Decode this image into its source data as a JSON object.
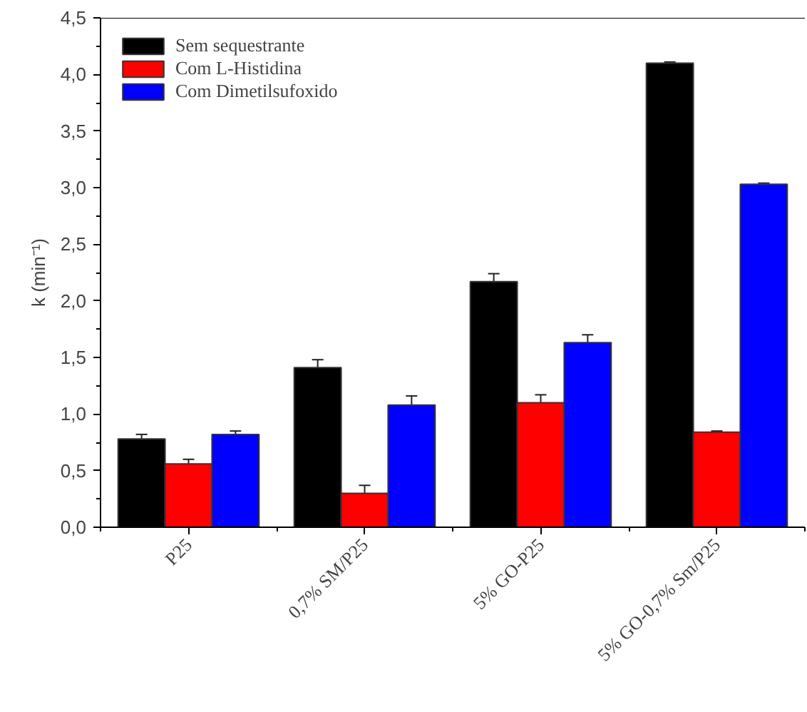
{
  "chart_data": {
    "type": "bar",
    "ylabel": "k (min⁻¹)",
    "categories": [
      "P25",
      "0,7% SM/P25",
      "5% GO-P25",
      "5% GO-0,7% Sm/P25"
    ],
    "series": [
      {
        "name": "Sem sequestrante",
        "color": "#000000",
        "values": [
          0.78,
          1.41,
          2.17,
          4.1
        ],
        "errors": [
          0.04,
          0.07,
          0.07,
          0.01
        ]
      },
      {
        "name": "Com L-Histidina",
        "color": "#ff0000",
        "values": [
          0.56,
          0.3,
          1.1,
          0.84
        ],
        "errors": [
          0.04,
          0.07,
          0.07,
          0.01
        ]
      },
      {
        "name": "Com Dimetilsufoxido",
        "color": "#0000ff",
        "values": [
          0.82,
          1.08,
          1.63,
          3.03
        ],
        "errors": [
          0.03,
          0.08,
          0.07,
          0.01
        ]
      }
    ],
    "ylim": [
      0,
      4.5
    ],
    "yticks": [
      {
        "value": 0,
        "label": "0,0"
      },
      {
        "value": 0.5,
        "label": "0,5"
      },
      {
        "value": 1,
        "label": "1,0"
      },
      {
        "value": 1.5,
        "label": "1,5"
      },
      {
        "value": 2,
        "label": "2,0"
      },
      {
        "value": 2.5,
        "label": "2,5"
      },
      {
        "value": 3,
        "label": "3,0"
      },
      {
        "value": 3.5,
        "label": "3,5"
      },
      {
        "value": 4,
        "label": "4,0"
      },
      {
        "value": 4.5,
        "label": "4,5"
      }
    ],
    "grid": false,
    "legend": "top left"
  }
}
